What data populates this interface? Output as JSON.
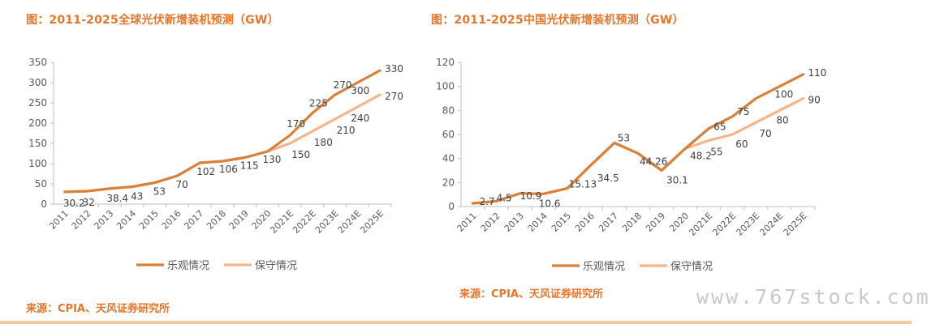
{
  "page": {
    "left_title": "图：2011-2025全球光伏新增装机预测（GW）",
    "right_title": "图：2011-2025中国光伏新增装机预测（GW）",
    "left_source": "来源：CPIA、天风证券研究所",
    "right_source": "来源：CPIA、天风证券研究所",
    "watermark": "www.767stock.com"
  },
  "colors": {
    "optimistic": "#d9813a",
    "conservative": "#f6b48a",
    "title": "#e5762a",
    "axis": "#bfbfbf"
  },
  "chart_data": [
    {
      "type": "line",
      "title": "图：2011-2025全球光伏新增装机预测（GW）",
      "categories": [
        "2011",
        "2012",
        "2013",
        "2014",
        "2015",
        "2016",
        "2017",
        "2018",
        "2019",
        "2020",
        "2021E",
        "2022E",
        "2023E",
        "2024E",
        "2025E"
      ],
      "ylim": [
        0,
        350
      ],
      "yticks": [
        0,
        50,
        100,
        150,
        200,
        250,
        300,
        350
      ],
      "legend_position": "bottom",
      "series": [
        {
          "name": "乐观情况",
          "values": [
            30.2,
            32,
            38.4,
            43,
            53,
            70,
            102,
            106,
            115,
            130,
            170,
            225,
            270,
            300,
            330
          ]
        },
        {
          "name": "保守情况",
          "values": [
            30.2,
            32,
            38.4,
            43,
            53,
            70,
            102,
            106,
            115,
            130,
            150,
            180,
            210,
            240,
            270
          ]
        }
      ],
      "data_labels": [
        "30.2",
        "32",
        "38.4",
        "43",
        "53",
        "70",
        "102",
        "106",
        "115",
        "130",
        "170",
        "150",
        "225",
        "180",
        "270",
        "210",
        "300",
        "240",
        "330",
        "270"
      ]
    },
    {
      "type": "line",
      "title": "图：2011-2025中国光伏新增装机预测（GW）",
      "categories": [
        "2011",
        "2012",
        "2013",
        "2014",
        "2015",
        "2016",
        "2017",
        "2018",
        "2019",
        "2020",
        "2021E",
        "2022E",
        "2023E",
        "2024E",
        "2025E"
      ],
      "ylim": [
        0,
        120
      ],
      "yticks": [
        0,
        20,
        40,
        60,
        80,
        100,
        120
      ],
      "legend_position": "bottom",
      "series": [
        {
          "name": "乐观情况",
          "values": [
            2.7,
            4.5,
            10.9,
            10.6,
            15.13,
            34.5,
            53,
            44.26,
            30.1,
            48.2,
            65,
            75,
            90,
            100,
            110
          ]
        },
        {
          "name": "保守情况",
          "values": [
            2.7,
            4.5,
            10.9,
            10.6,
            15.13,
            34.5,
            53,
            44.26,
            30.1,
            48.2,
            55,
            60,
            70,
            80,
            90
          ]
        }
      ],
      "data_labels": [
        "2.7",
        "4.5",
        "10.9",
        "10.6",
        "15.13",
        "34.5",
        "53",
        "44.26",
        "30.1",
        "48.2",
        "65",
        "55",
        "75",
        "60",
        "70",
        "100",
        "80",
        "110",
        "90"
      ]
    }
  ]
}
